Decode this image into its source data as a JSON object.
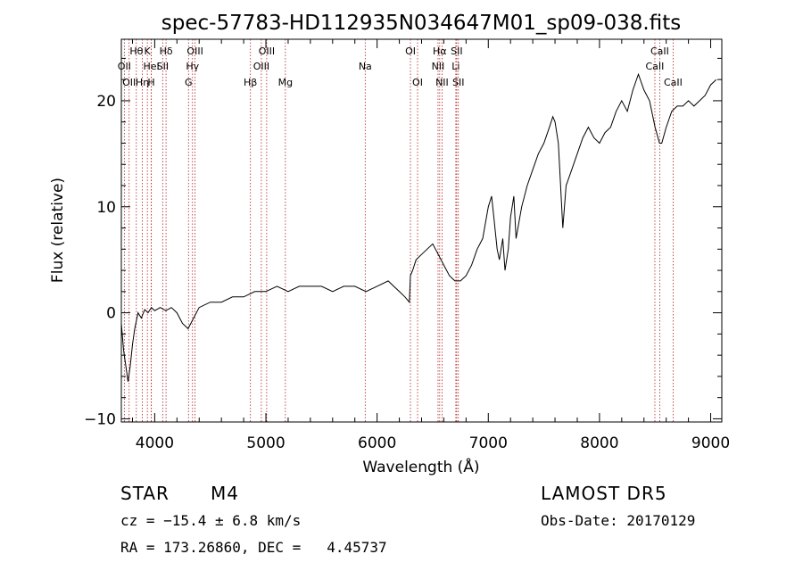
{
  "chart_data": {
    "type": "line",
    "title": "spec-57783-HD112935N034647M01_sp09-038.fits",
    "xlabel": "Wavelength (Å)",
    "ylabel": "Flux (relative)",
    "xlim": [
      3700,
      9100
    ],
    "ylim": [
      -10.3,
      25.8
    ],
    "x_ticks": [
      4000,
      5000,
      6000,
      7000,
      8000,
      9000
    ],
    "y_ticks": [
      -10,
      0,
      10,
      20
    ],
    "grid": false,
    "series": [
      {
        "color": "#000000",
        "x": [
          3700,
          3720,
          3740,
          3760,
          3780,
          3800,
          3820,
          3850,
          3880,
          3910,
          3940,
          3970,
          4000,
          4050,
          4100,
          4150,
          4200,
          4250,
          4300,
          4350,
          4400,
          4500,
          4600,
          4700,
          4800,
          4900,
          5000,
          5100,
          5200,
          5300,
          5400,
          5500,
          5600,
          5700,
          5800,
          5900,
          6000,
          6100,
          6150,
          6200,
          6250,
          6290,
          6300,
          6320,
          6350,
          6400,
          6450,
          6500,
          6550,
          6600,
          6650,
          6700,
          6750,
          6800,
          6850,
          6900,
          6950,
          7000,
          7030,
          7050,
          7080,
          7100,
          7130,
          7150,
          7180,
          7200,
          7230,
          7250,
          7300,
          7350,
          7400,
          7450,
          7500,
          7550,
          7580,
          7600,
          7630,
          7650,
          7670,
          7700,
          7750,
          7800,
          7850,
          7900,
          7950,
          8000,
          8050,
          8100,
          8150,
          8200,
          8250,
          8300,
          8350,
          8400,
          8450,
          8500,
          8540,
          8560,
          8600,
          8650,
          8700,
          8750,
          8800,
          8850,
          8900,
          8950,
          9000,
          9050
        ],
        "y": [
          -1.0,
          -3.5,
          -5.0,
          -6.5,
          -5.0,
          -3.0,
          -1.5,
          0.0,
          -0.5,
          0.3,
          0.0,
          0.5,
          0.2,
          0.5,
          0.2,
          0.5,
          0.0,
          -1.0,
          -1.5,
          -0.5,
          0.5,
          1.0,
          1.0,
          1.5,
          1.5,
          2.0,
          2.0,
          2.5,
          2.0,
          2.5,
          2.5,
          2.5,
          2.0,
          2.5,
          2.5,
          2.0,
          2.5,
          3.0,
          2.5,
          2.0,
          1.5,
          1.0,
          3.5,
          4.0,
          5.0,
          5.5,
          6.0,
          6.5,
          5.5,
          4.5,
          3.5,
          3.0,
          3.0,
          3.5,
          4.5,
          6.0,
          7.0,
          10.0,
          11.0,
          9.0,
          6.0,
          5.0,
          7.0,
          4.0,
          6.0,
          9.0,
          11.0,
          7.0,
          10.0,
          12.0,
          13.5,
          15.0,
          16.0,
          17.5,
          18.5,
          18.0,
          16.0,
          12.0,
          8.0,
          12.0,
          13.5,
          15.0,
          16.5,
          17.5,
          16.5,
          16.0,
          17.0,
          17.5,
          19.0,
          20.0,
          19.0,
          21.0,
          22.5,
          21.0,
          20.0,
          17.5,
          16.0,
          16.0,
          17.5,
          19.0,
          19.5,
          19.5,
          20.0,
          19.5,
          20.0,
          20.5,
          21.5,
          22.0
        ]
      }
    ],
    "lines": [
      {
        "x": 3727,
        "label": "OII",
        "row": 1
      },
      {
        "x": 3770,
        "label": "OII",
        "row": 2
      },
      {
        "x": 3835,
        "label": "Hθ",
        "row": 0
      },
      {
        "x": 3889,
        "label": "Hη",
        "row": 2
      },
      {
        "x": 3934,
        "label": "K",
        "row": 0
      },
      {
        "x": 3969,
        "label": "H",
        "row": 2
      },
      {
        "x": 3970,
        "label": "HeI",
        "row": 1
      },
      {
        "x": 4072,
        "label": "SII",
        "row": 1
      },
      {
        "x": 4102,
        "label": "Hδ",
        "row": 0
      },
      {
        "x": 4304,
        "label": "G",
        "row": 2
      },
      {
        "x": 4340,
        "label": "Hγ",
        "row": 1
      },
      {
        "x": 4363,
        "label": "OIII",
        "row": 0
      },
      {
        "x": 4861,
        "label": "Hβ",
        "row": 2
      },
      {
        "x": 4959,
        "label": "OIII",
        "row": 1
      },
      {
        "x": 5007,
        "label": "OIII",
        "row": 0
      },
      {
        "x": 5175,
        "label": "Mg",
        "row": 2
      },
      {
        "x": 5893,
        "label": "Na",
        "row": 1
      },
      {
        "x": 6300,
        "label": "OI",
        "row": 0
      },
      {
        "x": 6364,
        "label": "OI",
        "row": 2
      },
      {
        "x": 6548,
        "label": "NII",
        "row": 1
      },
      {
        "x": 6563,
        "label": "Hα",
        "row": 0
      },
      {
        "x": 6584,
        "label": "NII",
        "row": 2
      },
      {
        "x": 6708,
        "label": "Li",
        "row": 1
      },
      {
        "x": 6716,
        "label": "SII",
        "row": 0
      },
      {
        "x": 6731,
        "label": "SII",
        "row": 2
      },
      {
        "x": 8498,
        "label": "CaII",
        "row": 1
      },
      {
        "x": 8542,
        "label": "CaII",
        "row": 0
      },
      {
        "x": 8662,
        "label": "CaII",
        "row": 2
      }
    ]
  },
  "info": {
    "class_label": "STAR",
    "subclass": "M4",
    "survey": "LAMOST DR5",
    "cz": "cz = −15.4 ± 6.8 km/s",
    "obs_date": "Obs-Date: 20170129",
    "coords": "RA = 173.26860, DEC =   4.45737"
  },
  "colors": {
    "spectrum": "#000000",
    "line_markers": "#b22222",
    "axes": "#000000"
  }
}
